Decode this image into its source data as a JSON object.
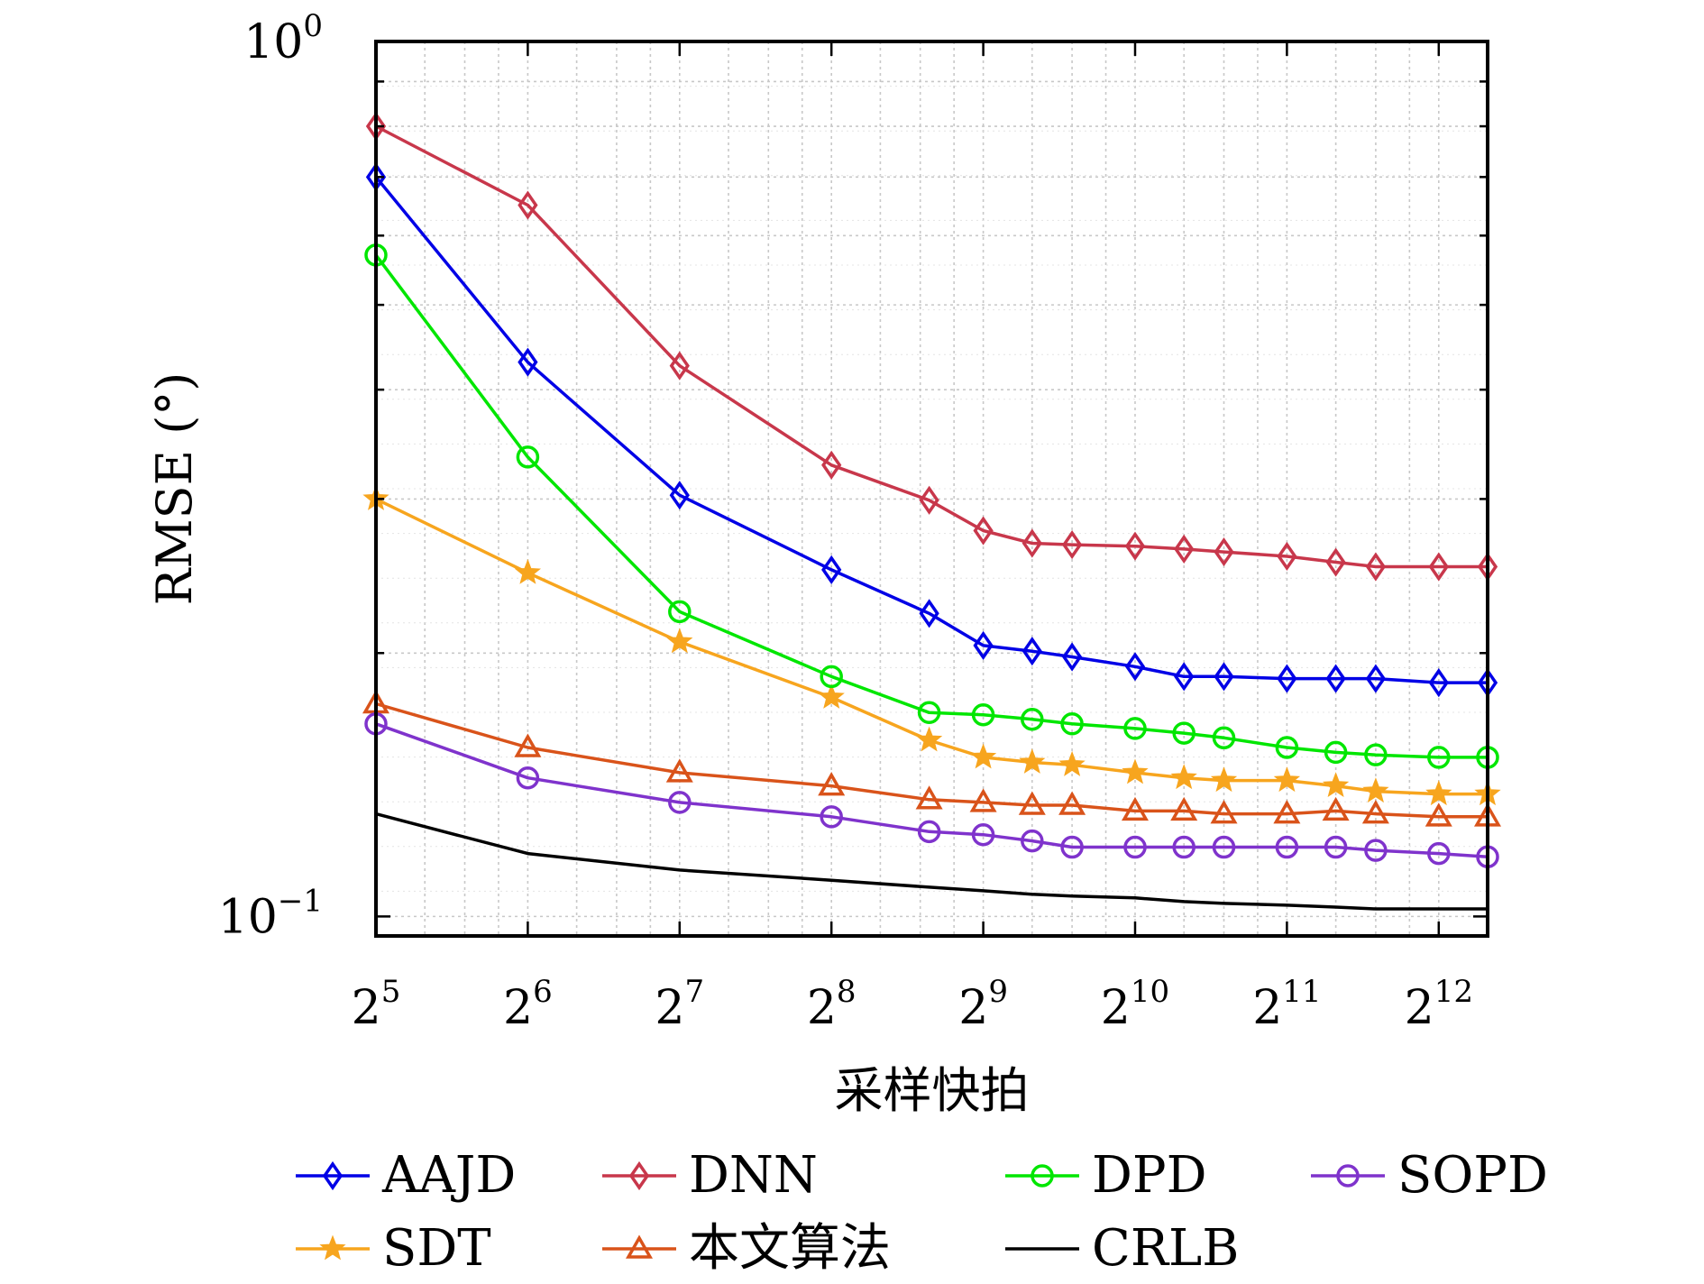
{
  "chart_data": {
    "type": "line",
    "xlabel": "采样快拍",
    "ylabel": "RMSE (°)",
    "x_scale": "log2",
    "y_scale": "log10",
    "xlim": [
      32,
      5120
    ],
    "ylim": [
      0.095,
      1.0
    ],
    "grid": true,
    "legend_placement": "bottom",
    "x_ticks": [
      {
        "value": 32,
        "base": "2",
        "exp": "5"
      },
      {
        "value": 64,
        "base": "2",
        "exp": "6"
      },
      {
        "value": 128,
        "base": "2",
        "exp": "7"
      },
      {
        "value": 256,
        "base": "2",
        "exp": "8"
      },
      {
        "value": 512,
        "base": "2",
        "exp": "9"
      },
      {
        "value": 1024,
        "base": "2",
        "exp": "10"
      },
      {
        "value": 2048,
        "base": "2",
        "exp": "11"
      },
      {
        "value": 4096,
        "base": "2",
        "exp": "12"
      }
    ],
    "y_ticks": [
      {
        "value": 1.0,
        "base": "10",
        "exp": "0"
      },
      {
        "value": 0.1,
        "base": "10",
        "exp": "−1"
      }
    ],
    "x": [
      32,
      64,
      128,
      256,
      400,
      512,
      640,
      768,
      1024,
      1280,
      1536,
      2048,
      2560,
      3072,
      4096,
      5120
    ],
    "series": [
      {
        "name": "AAJD",
        "color": "#0000e6",
        "marker": "diamond",
        "values": [
          0.7,
          0.43,
          0.303,
          0.249,
          0.222,
          0.204,
          0.201,
          0.198,
          0.193,
          0.188,
          0.188,
          0.187,
          0.187,
          0.187,
          0.185,
          0.185
        ]
      },
      {
        "name": "DNN",
        "color": "#c8374b",
        "marker": "diamond",
        "values": [
          0.8,
          0.65,
          0.426,
          0.328,
          0.299,
          0.276,
          0.267,
          0.266,
          0.265,
          0.263,
          0.261,
          0.258,
          0.254,
          0.251,
          0.251,
          0.251
        ]
      },
      {
        "name": "DPD",
        "color": "#00e600",
        "marker": "circle",
        "values": [
          0.57,
          0.335,
          0.223,
          0.188,
          0.171,
          0.17,
          0.168,
          0.166,
          0.164,
          0.162,
          0.16,
          0.156,
          0.154,
          0.153,
          0.152,
          0.152
        ]
      },
      {
        "name": "SOPD",
        "color": "#7f33cc",
        "marker": "circle",
        "values": [
          0.166,
          0.144,
          0.135,
          0.13,
          0.125,
          0.124,
          0.122,
          0.12,
          0.12,
          0.12,
          0.12,
          0.12,
          0.12,
          0.119,
          0.118,
          0.117
        ]
      },
      {
        "name": "SDT",
        "color": "#f7a51e",
        "marker": "star",
        "values": [
          0.3,
          0.247,
          0.206,
          0.178,
          0.159,
          0.152,
          0.15,
          0.149,
          0.146,
          0.144,
          0.143,
          0.143,
          0.141,
          0.139,
          0.138,
          0.138
        ]
      },
      {
        "name": "本文算法",
        "color": "#d9531a",
        "marker": "triangle",
        "values": [
          0.175,
          0.156,
          0.146,
          0.141,
          0.136,
          0.135,
          0.134,
          0.134,
          0.132,
          0.132,
          0.131,
          0.131,
          0.132,
          0.131,
          0.13,
          0.13
        ]
      },
      {
        "name": "CRLB",
        "color": "#000000",
        "marker": "none",
        "values": [
          0.131,
          0.118,
          0.113,
          0.11,
          0.108,
          0.107,
          0.106,
          0.1055,
          0.105,
          0.104,
          0.1035,
          0.103,
          0.1025,
          0.102,
          0.102,
          0.102
        ]
      }
    ]
  }
}
